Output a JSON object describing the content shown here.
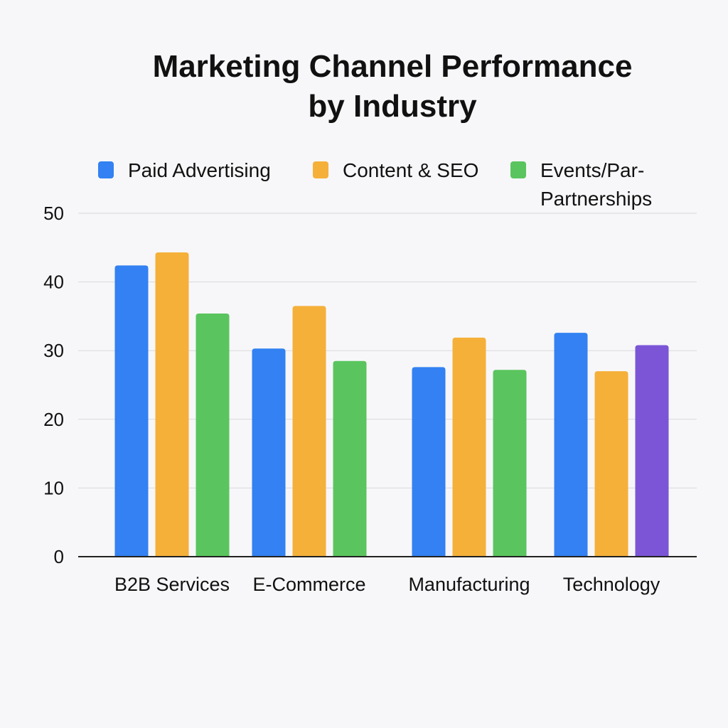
{
  "chart_data": {
    "type": "bar",
    "title_lines": [
      "Marketing Channel Performance",
      "by Industry"
    ],
    "categories": [
      "B2B Services",
      "E-Commerce",
      "Manufacturing",
      "Technology"
    ],
    "series": [
      {
        "name": "Paid Advertising",
        "color": "#3381f2",
        "values": [
          42.4,
          30.3,
          27.6,
          32.6
        ]
      },
      {
        "name": "Content & SEO",
        "color": "#f5b03a",
        "values": [
          44.3,
          36.5,
          31.9,
          27.0
        ]
      },
      {
        "name": "Events/Par-Partnerships",
        "name_lines": [
          "Events/Par-",
          "Partnerships"
        ],
        "color": "#5ac55e",
        "values": [
          35.4,
          28.5,
          27.2,
          30.8
        ],
        "color_overrides": {
          "3": "#7b55d6"
        }
      }
    ],
    "yticks": [
      0,
      10,
      20,
      30,
      40,
      50
    ],
    "ylim": [
      0,
      50
    ],
    "grid": true,
    "legend_placement": "top",
    "xlabel": "",
    "ylabel": ""
  }
}
